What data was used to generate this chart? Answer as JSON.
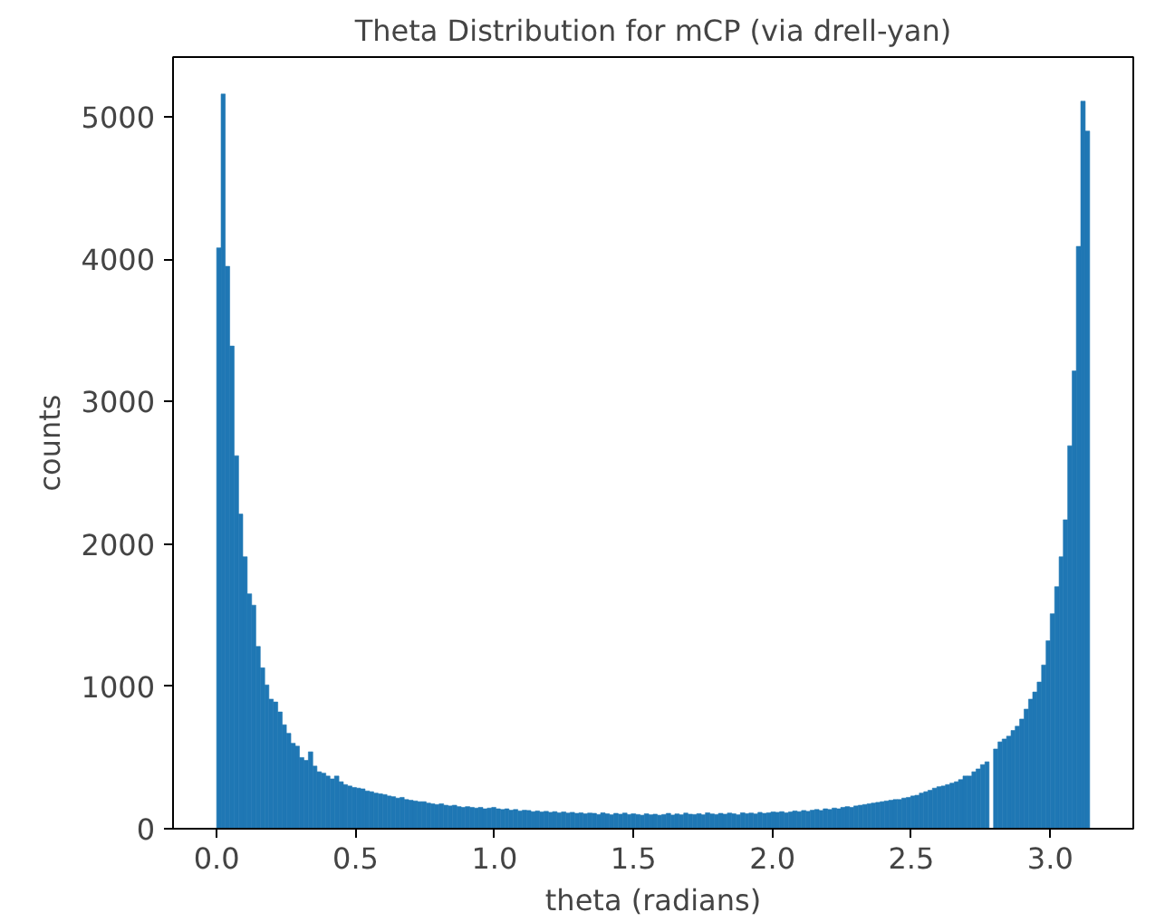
{
  "chart_data": {
    "type": "histogram",
    "title": "Theta Distribution for mCP (via drell-yan)",
    "xlabel": "theta (radians)",
    "ylabel": "counts",
    "color": "#1f77b4",
    "bins": [
      0,
      0.016,
      0.031,
      0.047,
      0.063,
      0.079,
      0.094,
      0.11,
      0.126,
      0.141,
      0.157,
      0.173,
      0.188,
      0.204,
      0.22,
      0.236,
      0.251,
      0.267,
      0.283,
      0.298,
      0.314,
      0.33,
      0.346,
      0.361,
      0.377,
      0.393,
      0.408,
      0.424,
      0.44,
      0.456,
      0.471,
      0.487,
      0.503,
      0.518,
      0.534,
      0.55,
      0.565,
      0.581,
      0.597,
      0.613,
      0.628,
      0.644,
      0.66,
      0.675,
      0.691,
      0.707,
      0.723,
      0.738,
      0.754,
      0.77,
      0.785,
      0.801,
      0.817,
      0.833,
      0.848,
      0.864,
      0.88,
      0.895,
      0.911,
      0.927,
      0.942,
      0.958,
      0.974,
      0.99,
      1.005,
      1.021,
      1.037,
      1.052,
      1.068,
      1.084,
      1.1,
      1.115,
      1.131,
      1.147,
      1.162,
      1.178,
      1.194,
      1.209,
      1.225,
      1.241,
      1.257,
      1.272,
      1.288,
      1.304,
      1.319,
      1.335,
      1.351,
      1.367,
      1.382,
      1.398,
      1.414,
      1.429,
      1.445,
      1.461,
      1.477,
      1.492,
      1.508,
      1.524,
      1.539,
      1.555,
      1.571,
      1.586,
      1.602,
      1.618,
      1.634,
      1.649,
      1.665,
      1.681,
      1.696,
      1.712,
      1.728,
      1.744,
      1.759,
      1.775,
      1.791,
      1.806,
      1.822,
      1.838,
      1.854,
      1.869,
      1.885,
      1.901,
      1.916,
      1.932,
      1.948,
      1.963,
      1.979,
      1.995,
      2.011,
      2.026,
      2.042,
      2.058,
      2.073,
      2.089,
      2.105,
      2.121,
      2.136,
      2.152,
      2.168,
      2.183,
      2.199,
      2.215,
      2.231,
      2.246,
      2.262,
      2.278,
      2.293,
      2.309,
      2.325,
      2.341,
      2.356,
      2.372,
      2.388,
      2.403,
      2.419,
      2.435,
      2.45,
      2.466,
      2.482,
      2.498,
      2.513,
      2.529,
      2.545,
      2.56,
      2.576,
      2.592,
      2.608,
      2.623,
      2.639,
      2.655,
      2.67,
      2.686,
      2.702,
      2.718,
      2.733,
      2.749,
      2.765,
      2.78,
      2.796,
      2.812,
      2.827,
      2.843,
      2.859,
      2.874,
      2.89,
      2.906,
      2.922,
      2.937,
      2.953,
      2.969,
      2.985,
      3.0,
      3.016,
      3.032,
      3.047,
      3.063,
      3.079,
      3.094,
      3.11,
      3.126,
      3.142
    ],
    "values": [
      4080,
      5160,
      3950,
      3390,
      2620,
      2210,
      1910,
      1650,
      1570,
      1280,
      1130,
      1010,
      910,
      890,
      820,
      730,
      670,
      600,
      580,
      500,
      480,
      540,
      440,
      400,
      390,
      370,
      350,
      370,
      330,
      310,
      300,
      290,
      285,
      280,
      265,
      260,
      250,
      245,
      240,
      230,
      225,
      215,
      220,
      205,
      200,
      195,
      190,
      190,
      180,
      175,
      170,
      175,
      165,
      160,
      165,
      155,
      150,
      155,
      150,
      145,
      150,
      140,
      145,
      150,
      140,
      135,
      140,
      130,
      135,
      125,
      130,
      128,
      120,
      125,
      118,
      122,
      115,
      120,
      112,
      118,
      110,
      115,
      108,
      112,
      105,
      110,
      108,
      100,
      112,
      105,
      98,
      108,
      102,
      110,
      100,
      105,
      100,
      95,
      105,
      98,
      102,
      95,
      100,
      108,
      96,
      104,
      98,
      110,
      102,
      100,
      106,
      98,
      112,
      104,
      100,
      108,
      102,
      110,
      105,
      98,
      112,
      106,
      110,
      104,
      115,
      108,
      112,
      118,
      115,
      120,
      112,
      118,
      125,
      120,
      128,
      122,
      130,
      135,
      128,
      140,
      135,
      145,
      140,
      150,
      155,
      150,
      160,
      165,
      170,
      175,
      180,
      185,
      190,
      195,
      200,
      205,
      205,
      215,
      220,
      230,
      235,
      250,
      260,
      270,
      285,
      295,
      300,
      310,
      320,
      330,
      345,
      370,
      370,
      400,
      420,
      450,
      470,
      0,
      560,
      610,
      630,
      650,
      690,
      720,
      770,
      840,
      910,
      960,
      1030,
      1150,
      1320,
      1510,
      1700,
      1910,
      2170,
      2690,
      3215,
      4090,
      5110,
      4900
    ],
    "xlim": [
      -0.157,
      3.299
    ],
    "ylim": [
      0,
      5420
    ],
    "xticks": [
      {
        "value": 0,
        "label": "0.0"
      },
      {
        "value": 0.5,
        "label": "0.5"
      },
      {
        "value": 1,
        "label": "1.0"
      },
      {
        "value": 1.5,
        "label": "1.5"
      },
      {
        "value": 2,
        "label": "2.0"
      },
      {
        "value": 2.5,
        "label": "2.5"
      },
      {
        "value": 3,
        "label": "3.0"
      }
    ],
    "yticks": [
      0,
      1000,
      2000,
      3000,
      4000,
      5000
    ],
    "grid": false
  }
}
